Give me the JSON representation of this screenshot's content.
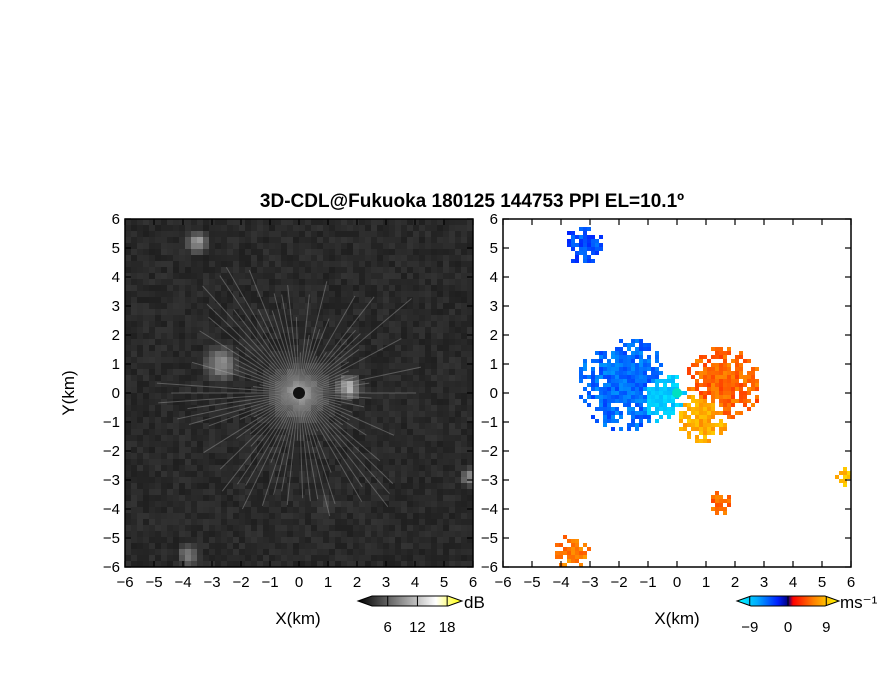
{
  "chart_data": {
    "title": "3D-CDL@Fukuoka 180125 144753 PPI EL=10.1º",
    "panels": [
      {
        "type": "heatmap",
        "quantity": "signal-to-noise ratio",
        "xlabel": "X(km)",
        "ylabel": "Y(km)",
        "xlim": [
          -6,
          6
        ],
        "ylim": [
          -6,
          6
        ],
        "xticks": [
          "−6",
          "−5",
          "−4",
          "−3",
          "−2",
          "−1",
          "0",
          "1",
          "2",
          "3",
          "4",
          "5",
          "6"
        ],
        "yticks": [
          "−6",
          "−5",
          "−4",
          "−3",
          "−2",
          "−1",
          "0",
          "1",
          "2",
          "3",
          "4",
          "5",
          "6"
        ],
        "colorbar": {
          "unit": "dB",
          "ticks": [
            "6",
            "12",
            "18"
          ],
          "tick_values": [
            6,
            12,
            18
          ],
          "range": [
            0,
            21
          ],
          "colormap": "gray",
          "colors": [
            "#1a1a1a",
            "#ffffff",
            "#ffff00"
          ]
        },
        "echo_regions": [
          {
            "x": 0,
            "y": 0,
            "r": 2.2,
            "level": 0.35
          },
          {
            "x": -2.7,
            "y": 1.0,
            "r": 1.0,
            "level": 0.55
          },
          {
            "x": 1.7,
            "y": 0.2,
            "r": 0.7,
            "level": 0.7
          },
          {
            "x": -3.5,
            "y": 5.2,
            "r": 0.6,
            "level": 0.65
          },
          {
            "x": -3.8,
            "y": -5.6,
            "r": 0.6,
            "level": 0.55
          },
          {
            "x": 5.9,
            "y": -2.9,
            "r": 0.5,
            "level": 0.6
          },
          {
            "x": 1.0,
            "y": -3.9,
            "r": 0.8,
            "level": 0.25
          }
        ]
      },
      {
        "type": "heatmap",
        "quantity": "radial velocity",
        "xlabel": "X(km)",
        "ylabel": "Y(km)",
        "xlim": [
          -6,
          6
        ],
        "ylim": [
          -6,
          6
        ],
        "xticks": [
          "−6",
          "−5",
          "−4",
          "−3",
          "−2",
          "−1",
          "0",
          "1",
          "2",
          "3",
          "4",
          "5",
          "6"
        ],
        "yticks": [
          "−6",
          "−5",
          "−4",
          "−3",
          "−2",
          "−1",
          "0",
          "1",
          "2",
          "3",
          "4",
          "5",
          "6"
        ],
        "colorbar": {
          "unit": "ms⁻¹",
          "ticks": [
            "−9",
            "0",
            "9"
          ],
          "tick_values": [
            -9,
            0,
            9
          ],
          "range": [
            -12,
            12
          ],
          "colormap": "jet",
          "colors": [
            "#00ffff",
            "#00aaff",
            "#0040ff",
            "#0000a0",
            "#ff0000",
            "#ff8000",
            "#ffff00"
          ]
        },
        "velocity_regions": [
          {
            "x": -1.8,
            "y": 0.3,
            "r": 1.6,
            "velocity": -5
          },
          {
            "x": -0.6,
            "y": -0.1,
            "r": 0.9,
            "velocity": -9
          },
          {
            "x": 1.6,
            "y": 0.3,
            "r": 1.3,
            "velocity": 5
          },
          {
            "x": 0.9,
            "y": -0.8,
            "r": 0.9,
            "velocity": 8
          },
          {
            "x": -3.2,
            "y": 5.1,
            "r": 0.7,
            "velocity": -4
          },
          {
            "x": 5.8,
            "y": -2.9,
            "r": 0.3,
            "velocity": 9
          },
          {
            "x": -3.6,
            "y": -5.5,
            "r": 0.6,
            "velocity": 6
          },
          {
            "x": 1.5,
            "y": -3.8,
            "r": 0.4,
            "velocity": 5
          }
        ]
      }
    ]
  }
}
